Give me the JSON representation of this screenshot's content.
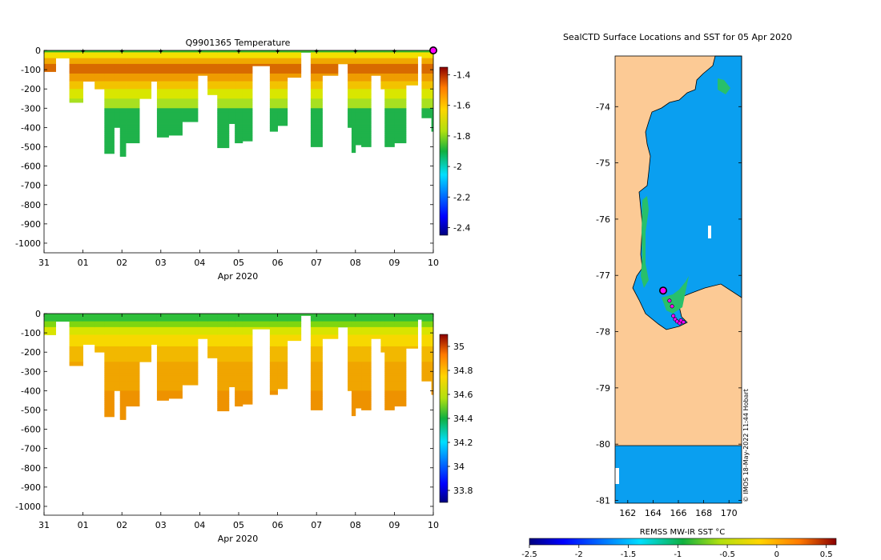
{
  "chart_data": [
    {
      "type": "heatmap",
      "title": "Q9901365  Temperature",
      "variable": "temperature",
      "xlabel": "Apr 2020",
      "ylabel": "",
      "x_tick_labels": [
        "31",
        "01",
        "02",
        "03",
        "04",
        "05",
        "06",
        "07",
        "08",
        "09",
        "10"
      ],
      "x_range_days": [
        0,
        10
      ],
      "y_ticks": [
        0,
        -100,
        -200,
        -300,
        -400,
        -500,
        -600,
        -700,
        -800,
        -900,
        -1000
      ],
      "ylim": [
        -1050,
        0
      ],
      "colorbar": {
        "ticks": [
          -1.4,
          -1.6,
          -1.8,
          -2,
          -2.2,
          -2.4
        ],
        "range": [
          -2.45,
          -1.35
        ]
      },
      "surface_markers_day": [
        1,
        2,
        3,
        4,
        5,
        6,
        7,
        8,
        9
      ],
      "last_marker_day": 10,
      "profiles": [
        {
          "t": 0.0,
          "bottom": 110
        },
        {
          "t": 0.3,
          "bottom": 40
        },
        {
          "t": 0.65,
          "bottom": 270
        },
        {
          "t": 1.0,
          "bottom": 160
        },
        {
          "t": 1.3,
          "bottom": 200
        },
        {
          "t": 1.55,
          "bottom": 535
        },
        {
          "t": 1.8,
          "bottom": 400
        },
        {
          "t": 1.95,
          "bottom": 550
        },
        {
          "t": 2.1,
          "bottom": 480
        },
        {
          "t": 2.45,
          "bottom": 250
        },
        {
          "t": 2.75,
          "bottom": 160
        },
        {
          "t": 2.9,
          "bottom": 450
        },
        {
          "t": 3.2,
          "bottom": 440
        },
        {
          "t": 3.55,
          "bottom": 370
        },
        {
          "t": 3.95,
          "bottom": 130
        },
        {
          "t": 4.2,
          "bottom": 230
        },
        {
          "t": 4.45,
          "bottom": 505
        },
        {
          "t": 4.75,
          "bottom": 380
        },
        {
          "t": 4.9,
          "bottom": 480
        },
        {
          "t": 5.1,
          "bottom": 470
        },
        {
          "t": 5.35,
          "bottom": 80
        },
        {
          "t": 5.8,
          "bottom": 420
        },
        {
          "t": 6.0,
          "bottom": 390
        },
        {
          "t": 6.25,
          "bottom": 140
        },
        {
          "t": 6.6,
          "bottom": 10
        },
        {
          "t": 6.85,
          "bottom": 500
        },
        {
          "t": 7.15,
          "bottom": 130
        },
        {
          "t": 7.55,
          "bottom": 70
        },
        {
          "t": 7.8,
          "bottom": 400
        },
        {
          "t": 7.9,
          "bottom": 530
        },
        {
          "t": 8.0,
          "bottom": 490
        },
        {
          "t": 8.15,
          "bottom": 500
        },
        {
          "t": 8.4,
          "bottom": 130
        },
        {
          "t": 8.65,
          "bottom": 200
        },
        {
          "t": 8.75,
          "bottom": 500
        },
        {
          "t": 9.0,
          "bottom": 480
        },
        {
          "t": 9.3,
          "bottom": 180
        },
        {
          "t": 9.6,
          "bottom": 30
        },
        {
          "t": 9.7,
          "bottom": 350
        },
        {
          "t": 9.95,
          "bottom": 420
        }
      ]
    },
    {
      "type": "heatmap",
      "title": "",
      "variable": "salinity",
      "xlabel": "Apr 2020",
      "ylabel": "",
      "x_tick_labels": [
        "31",
        "01",
        "02",
        "03",
        "04",
        "05",
        "06",
        "07",
        "08",
        "09",
        "10"
      ],
      "x_range_days": [
        0,
        10
      ],
      "y_ticks": [
        0,
        -100,
        -200,
        -300,
        -400,
        -500,
        -600,
        -700,
        -800,
        -900,
        -1000
      ],
      "ylim": [
        -1050,
        0
      ],
      "colorbar": {
        "ticks": [
          35,
          34.8,
          34.6,
          34.4,
          34.2,
          34,
          33.8
        ],
        "range": [
          33.7,
          35.1
        ]
      }
    },
    {
      "type": "heatmap",
      "title": "SealCTD Surface Locations and SST for 05 Apr 2020",
      "xlabel": "",
      "ylabel": "",
      "x_ticks": [
        162,
        164,
        166,
        168,
        170
      ],
      "y_ticks": [
        -74,
        -75,
        -76,
        -77,
        -78,
        -79,
        -80,
        -81
      ],
      "xlim": [
        161,
        171
      ],
      "ylim": [
        -81.05,
        -73.1
      ],
      "colorbar_label": "REMSS MW-IR SST °C",
      "colorbar_ticks": [
        -2.5,
        -2,
        -1.5,
        -1,
        -0.5,
        0,
        0.5
      ],
      "colorbar_range": [
        -2.5,
        0.6
      ],
      "ocean_sst_value": -1.75,
      "latest_position": {
        "lon": 164.8,
        "lat": -77.27
      },
      "track_positions": [
        {
          "lon": 165.3,
          "lat": -77.45
        },
        {
          "lon": 165.5,
          "lat": -77.55
        },
        {
          "lon": 165.6,
          "lat": -77.72
        },
        {
          "lon": 165.75,
          "lat": -77.78
        },
        {
          "lon": 165.9,
          "lat": -77.82
        },
        {
          "lon": 166.1,
          "lat": -77.85
        },
        {
          "lon": 166.2,
          "lat": -77.8
        },
        {
          "lon": 166.4,
          "lat": -77.83
        }
      ],
      "credit": "© IMOS 18-May-2022 11:44 Hobart"
    }
  ],
  "colors": {
    "land": "#fcca95",
    "ocean": "#0a9ff0",
    "marker": "#ff00ff"
  }
}
